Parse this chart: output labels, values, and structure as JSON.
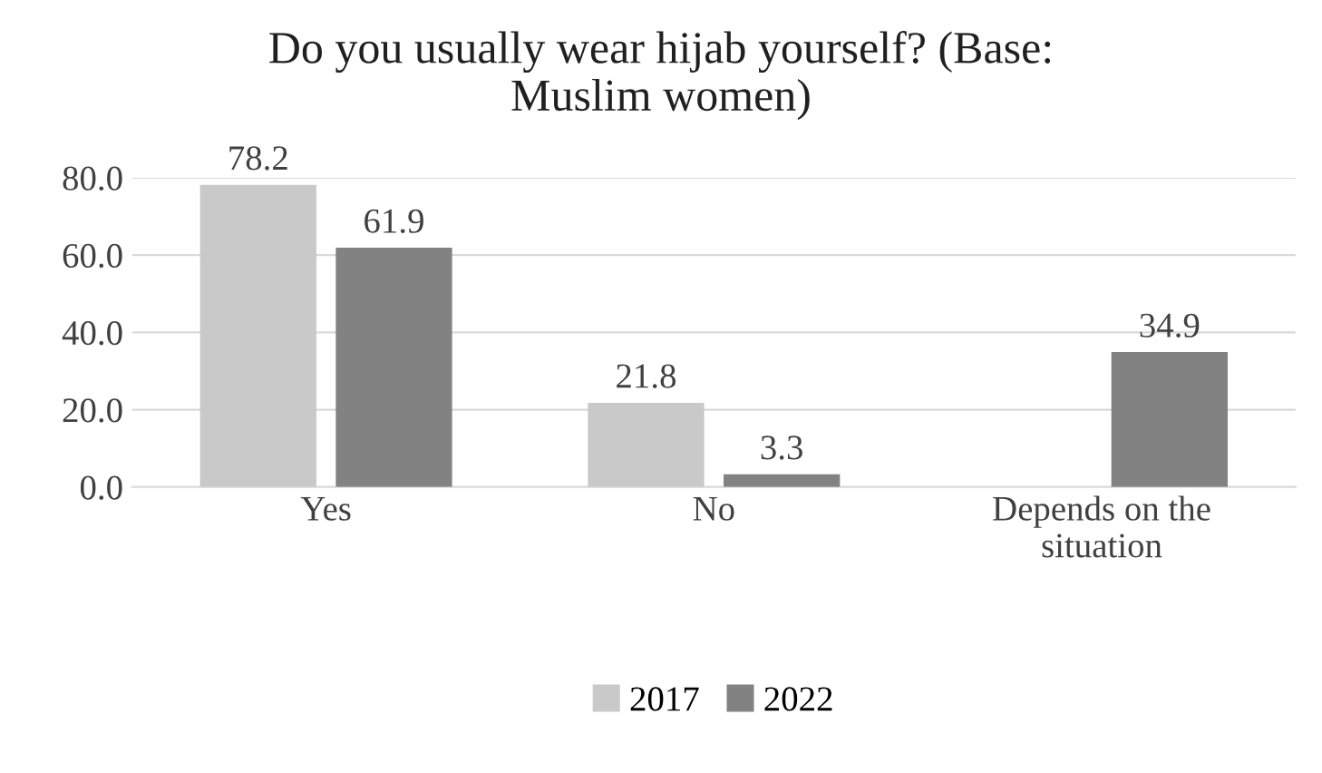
{
  "chart_data": {
    "type": "bar",
    "title": "Do you usually wear hijab yourself? (Base:\nMuslim women)",
    "categories": [
      "Yes",
      "No",
      "Depends on the\nsituation"
    ],
    "series": [
      {
        "name": "2017",
        "color": "#c9c9c9",
        "values": [
          78.2,
          21.8,
          null
        ]
      },
      {
        "name": "2022",
        "color": "#828282",
        "values": [
          61.9,
          3.3,
          34.9
        ]
      }
    ],
    "ylim": [
      0,
      80
    ],
    "yticks": [
      {
        "value": 0,
        "label": "0.0"
      },
      {
        "value": 20,
        "label": "20.0"
      },
      {
        "value": 40,
        "label": "40.0"
      },
      {
        "value": 60,
        "label": "60.0"
      },
      {
        "value": 80,
        "label": "80.0"
      }
    ],
    "grid": "y",
    "legend": "bottom",
    "data_labels": true
  }
}
